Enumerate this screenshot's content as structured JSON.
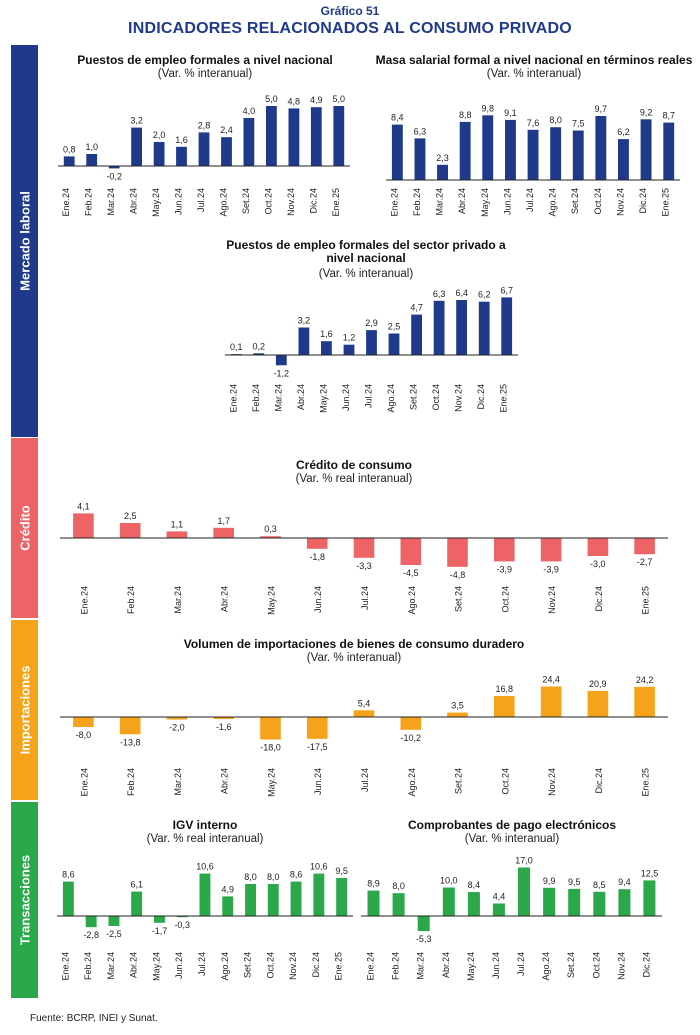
{
  "header": {
    "supertitle": "Gráfico 51",
    "title": "INDICADORES RELACIONADOS AL CONSUMO PRIVADO"
  },
  "sections": [
    {
      "label": "Mercado laboral",
      "color": "#1f3a8a"
    },
    {
      "label": "Crédito",
      "color": "#ee6466"
    },
    {
      "label": "Importaciones",
      "color": "#f5a31a"
    },
    {
      "label": "Transacciones",
      "color": "#2aa84a"
    }
  ],
  "source": "Fuente: BCRP, INEI y Sunat.",
  "chart_data": [
    {
      "type": "bar",
      "title": "Puestos de empleo formales a nivel nacional",
      "subtitle": "(Var. % interanual)",
      "color": "#1f3a8a",
      "categories": [
        "Ene.24",
        "Feb.24",
        "Mar.24",
        "Abr.24",
        "May.24",
        "Jun.24",
        "Jul.24",
        "Ago.24",
        "Set.24",
        "Oct.24",
        "Nov.24",
        "Dic.24",
        "Ene.25"
      ],
      "values": [
        0.8,
        1.0,
        -0.2,
        3.2,
        2.0,
        1.6,
        2.8,
        2.4,
        4.0,
        5.0,
        4.8,
        4.9,
        5.0
      ],
      "labels": [
        "0,8",
        "1,0",
        "-0,2",
        "3,2",
        "2,0",
        "1,6",
        "2,8",
        "2,4",
        "4,0",
        "5,0",
        "4,8",
        "4,9",
        "5,0"
      ]
    },
    {
      "type": "bar",
      "title": "Masa salarial formal a nivel nacional en términos reales",
      "subtitle": "(Var. % interanual)",
      "color": "#1f3a8a",
      "categories": [
        "Ene.24",
        "Feb.24",
        "Mar.24",
        "Abr.24",
        "May.24",
        "Jun.24",
        "Jul.24",
        "Ago.24",
        "Set.24",
        "Oct.24",
        "Nov.24",
        "Dic.24",
        "Ene.25"
      ],
      "values": [
        8.4,
        6.3,
        2.3,
        8.8,
        9.8,
        9.1,
        7.6,
        8.0,
        7.5,
        9.7,
        6.2,
        9.2,
        8.7
      ],
      "labels": [
        "8,4",
        "6,3",
        "2,3",
        "8,8",
        "9,8",
        "9,1",
        "7,6",
        "8,0",
        "7,5",
        "9,7",
        "6,2",
        "9,2",
        "8,7"
      ]
    },
    {
      "type": "bar",
      "title": "Puestos de empleo formales del sector privado a nivel nacional",
      "title_lines": [
        "Puestos de empleo formales del sector privado a",
        "nivel nacional"
      ],
      "subtitle": "(Var. % interanual)",
      "color": "#1f3a8a",
      "categories": [
        "Ene.24",
        "Feb.24",
        "Mar.24",
        "Abr.24",
        "May.24",
        "Jun.24",
        "Jul.24",
        "Ago.24",
        "Set.24",
        "Oct.24",
        "Nov.24",
        "Dic.24",
        "Ene.25"
      ],
      "values": [
        0.1,
        0.2,
        -1.2,
        3.2,
        1.6,
        1.2,
        2.9,
        2.5,
        4.7,
        6.3,
        6.4,
        6.2,
        6.7
      ],
      "labels": [
        "0,1",
        "0,2",
        "-1,2",
        "3,2",
        "1,6",
        "1,2",
        "2,9",
        "2,5",
        "4,7",
        "6,3",
        "6,4",
        "6,2",
        "6,7"
      ]
    },
    {
      "type": "bar",
      "title": "Crédito de consumo",
      "subtitle": "(Var. % real interanual)",
      "color": "#ee6466",
      "categories": [
        "Ene.24",
        "Feb.24",
        "Mar.24",
        "Abr.24",
        "May.24",
        "Jun.24",
        "Jul.24",
        "Ago.24",
        "Set.24",
        "Oct.24",
        "Nov.24",
        "Dic.24",
        "Ene.25"
      ],
      "values": [
        4.1,
        2.5,
        1.1,
        1.7,
        0.3,
        -1.8,
        -3.3,
        -4.5,
        -4.8,
        -3.9,
        -3.9,
        -3.0,
        -2.7
      ],
      "labels": [
        "4,1",
        "2,5",
        "1,1",
        "1,7",
        "0,3",
        "-1,8",
        "-3,3",
        "-4,5",
        "-4,8",
        "-3,9",
        "-3,9",
        "-3,0",
        "-2,7"
      ]
    },
    {
      "type": "bar",
      "title": "Volumen de importaciones de bienes de consumo duradero",
      "subtitle": "(Var. % interanual)",
      "color": "#f5a31a",
      "categories": [
        "Ene.24",
        "Feb.24",
        "Mar.24",
        "Abr.24",
        "May.24",
        "Jun.24",
        "Jul.24",
        "Ago.24",
        "Set.24",
        "Oct.24",
        "Nov.24",
        "Dic.24",
        "Ene.25"
      ],
      "values": [
        -8.0,
        -13.8,
        -2.0,
        -1.6,
        -18.0,
        -17.5,
        5.4,
        -10.2,
        3.5,
        16.8,
        24.4,
        20.9,
        24.2
      ],
      "labels": [
        "-8,0",
        "-13,8",
        "-2,0",
        "-1,6",
        "-18,0",
        "-17,5",
        "5,4",
        "-10,2",
        "3,5",
        "16,8",
        "24,4",
        "20,9",
        "24,2"
      ]
    },
    {
      "type": "bar",
      "title": "IGV interno",
      "subtitle": "(Var. % real interanual)",
      "color": "#2aa84a",
      "categories": [
        "Ene.24",
        "Feb.24",
        "Mar.24",
        "Abr.24",
        "May.24",
        "Jun.24",
        "Jul.24",
        "Ago.24",
        "Set.24",
        "Oct.24",
        "Nov.24",
        "Dic.24",
        "Ene.25"
      ],
      "values": [
        8.6,
        -2.8,
        -2.5,
        6.1,
        -1.7,
        -0.3,
        10.6,
        4.9,
        8.0,
        8.0,
        8.6,
        10.6,
        9.5
      ],
      "labels": [
        "8,6",
        "-2,8",
        "-2,5",
        "6,1",
        "-1,7",
        "-0,3",
        "10,6",
        "4,9",
        "8,0",
        "8,0",
        "8,6",
        "10,6",
        "9,5"
      ]
    },
    {
      "type": "bar",
      "title": "Comprobantes de pago electrónicos",
      "subtitle": "(Var. % interanual)",
      "color": "#2aa84a",
      "categories": [
        "Ene.24",
        "Feb.24",
        "Mar.24",
        "Abr.24",
        "May.24",
        "Jun.24",
        "Jul.24",
        "Ago.24",
        "Set.24",
        "Oct.24",
        "Nov.24",
        "Dic.24"
      ],
      "values": [
        8.9,
        8.0,
        -5.3,
        10.0,
        8.4,
        4.4,
        17.0,
        9.9,
        9.5,
        8.5,
        9.4,
        12.5
      ],
      "labels": [
        "8,9",
        "8,0",
        "-5,3",
        "10,0",
        "8,4",
        "4,4",
        "17,0",
        "9,9",
        "9,5",
        "8,5",
        "9,4",
        "12,5"
      ]
    }
  ]
}
